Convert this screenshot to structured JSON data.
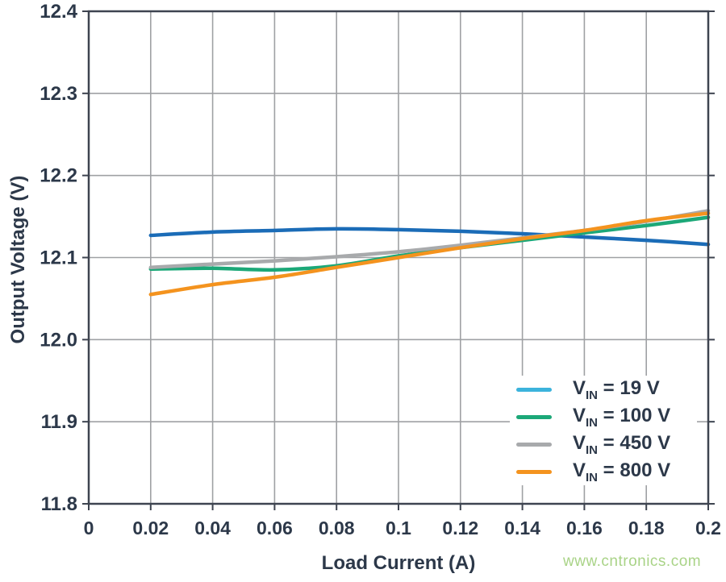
{
  "watermark": {
    "text": "www.cntronics.com",
    "color": "#a9d387"
  },
  "colors": {
    "frame": "#3e4450",
    "grid": "#9fa1a4",
    "tick_label": "#2c3849",
    "axis_title": "#2c3849",
    "legend_text": "#2c3849",
    "background": "#ffffff"
  },
  "chart_data": {
    "type": "line",
    "title": "",
    "xlabel": "Load Current (A)",
    "ylabel": "Output Voltage (V)",
    "xlim": [
      0,
      0.2
    ],
    "ylim": [
      11.8,
      12.4
    ],
    "grid": true,
    "legend_position": "lower right",
    "x_ticks": [
      0,
      0.02,
      0.04,
      0.06,
      0.08,
      0.1,
      0.12,
      0.14,
      0.16,
      0.18,
      0.2
    ],
    "x_tick_labels": [
      "0",
      "0.02",
      "0.04",
      "0.06",
      "0.08",
      "0.1",
      "0.12",
      "0.14",
      "0.16",
      "0.18",
      "0.2"
    ],
    "y_ticks": [
      11.8,
      11.9,
      12.0,
      12.1,
      12.2,
      12.3,
      12.4
    ],
    "y_tick_labels": [
      "11.8",
      "11.9",
      "12.0",
      "12.1",
      "12.2",
      "12.3",
      "12.4"
    ],
    "x": [
      0.02,
      0.04,
      0.06,
      0.08,
      0.1,
      0.12,
      0.14,
      0.16,
      0.18,
      0.2
    ],
    "series": [
      {
        "name": "VIN = 19 V",
        "label_parts": {
          "prefix": "V",
          "sub": "IN",
          "rest": " = 19 V"
        },
        "line_color": "#1b6cb7",
        "swatch_color": "#3cb3dc",
        "values": [
          12.127,
          12.131,
          12.133,
          12.135,
          12.134,
          12.132,
          12.129,
          12.125,
          12.121,
          12.116
        ]
      },
      {
        "name": "VIN = 100 V",
        "label_parts": {
          "prefix": "V",
          "sub": "IN",
          "rest": " = 100 V"
        },
        "line_color": "#1ca878",
        "swatch_color": "#1ca878",
        "values": [
          12.086,
          12.087,
          12.085,
          12.09,
          12.102,
          12.112,
          12.121,
          12.13,
          12.139,
          12.149
        ]
      },
      {
        "name": "VIN = 450 V",
        "label_parts": {
          "prefix": "V",
          "sub": "IN",
          "rest": " = 450 V"
        },
        "line_color": "#a8aaac",
        "swatch_color": "#a8aaac",
        "values": [
          12.088,
          12.092,
          12.096,
          12.101,
          12.107,
          12.115,
          12.124,
          12.133,
          12.144,
          12.157
        ]
      },
      {
        "name": "VIN = 800 V",
        "label_parts": {
          "prefix": "V",
          "sub": "IN",
          "rest": " = 800 V"
        },
        "line_color": "#f4931e",
        "swatch_color": "#f4931e",
        "values": [
          12.055,
          12.067,
          12.076,
          12.088,
          12.1,
          12.112,
          12.123,
          12.133,
          12.145,
          12.154
        ]
      }
    ]
  }
}
